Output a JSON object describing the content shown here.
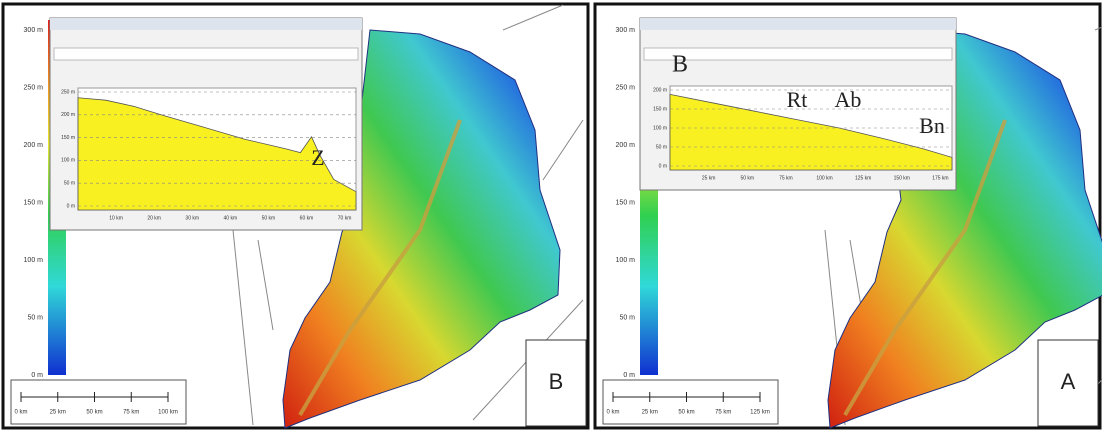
{
  "panels": [
    {
      "label": "B",
      "legend_ticks": [
        "300 m",
        "250 m",
        "200 m",
        "150 m",
        "100 m",
        "50 m",
        "0 m"
      ],
      "scale_labels": [
        "0 km",
        "25 km",
        "50 km",
        "75 km",
        "100 km"
      ],
      "profile": {
        "y_labels": [
          "250 m",
          "200 m",
          "150 m",
          "100 m",
          "50 m",
          "0 m"
        ],
        "x_labels": [
          "10 km",
          "20 km",
          "30 km",
          "40 km",
          "50 km",
          "60 km",
          "70 km"
        ],
        "annotations": [
          "Z"
        ]
      }
    },
    {
      "label": "A",
      "legend_ticks": [
        "300 m",
        "250 m",
        "200 m",
        "150 m",
        "100 m",
        "50 m",
        "0 m"
      ],
      "scale_labels": [
        "0 km",
        "25 km",
        "50 km",
        "75 km",
        "125 km"
      ],
      "profile": {
        "y_labels": [
          "200 m",
          "150 m",
          "100 m",
          "50 m",
          "0 m"
        ],
        "x_labels": [
          "25 km",
          "50 km",
          "75 km",
          "100 km",
          "125 km",
          "150 km",
          "175 km"
        ],
        "annotations": [
          "B",
          "Rt",
          "Ab",
          "Bn"
        ]
      }
    }
  ]
}
